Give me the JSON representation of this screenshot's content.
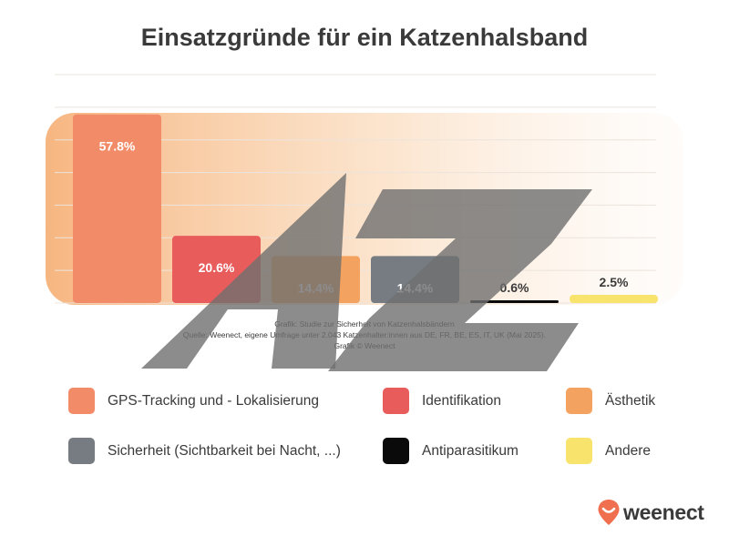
{
  "chart_data": {
    "type": "bar",
    "title": "Einsatzgründe für ein Katzenhalsband",
    "xlabel": "",
    "ylabel": "",
    "ylim": [
      0,
      70
    ],
    "grid": true,
    "legend_position": "bottom",
    "categories": [
      "GPS-Tracking und - Lokalisierung",
      "Identifikation",
      "Ästhetik",
      "Sicherheit (Sichtbarkeit bei Nacht, ...)",
      "Antiparasitikum",
      "Andere"
    ],
    "values": [
      57.8,
      20.6,
      14.4,
      14.4,
      0.6,
      2.5
    ],
    "data_labels": [
      "57.8%",
      "20.6%",
      "14.4%",
      "14.4%",
      "0.6%",
      "2.5%"
    ],
    "colors": [
      "#f28c68",
      "#e85c5c",
      "#f3a35f",
      "#767c82",
      "#0a0a0a",
      "#f8e36c"
    ]
  },
  "source": {
    "line1": "Grafik: Studie zur Sicherheit von Katzenhalsbändern",
    "line2": "Quelle: Weenect, eigene Umfrage unter 2.043 Katzenhalter:innen aus DE, FR, BE, ES, IT, UK (Mai 2025).",
    "line3": "Grafik © Weenect"
  },
  "watermark_text": "AZ",
  "logo": {
    "text": "weenect",
    "color": "#ef6f4f"
  }
}
